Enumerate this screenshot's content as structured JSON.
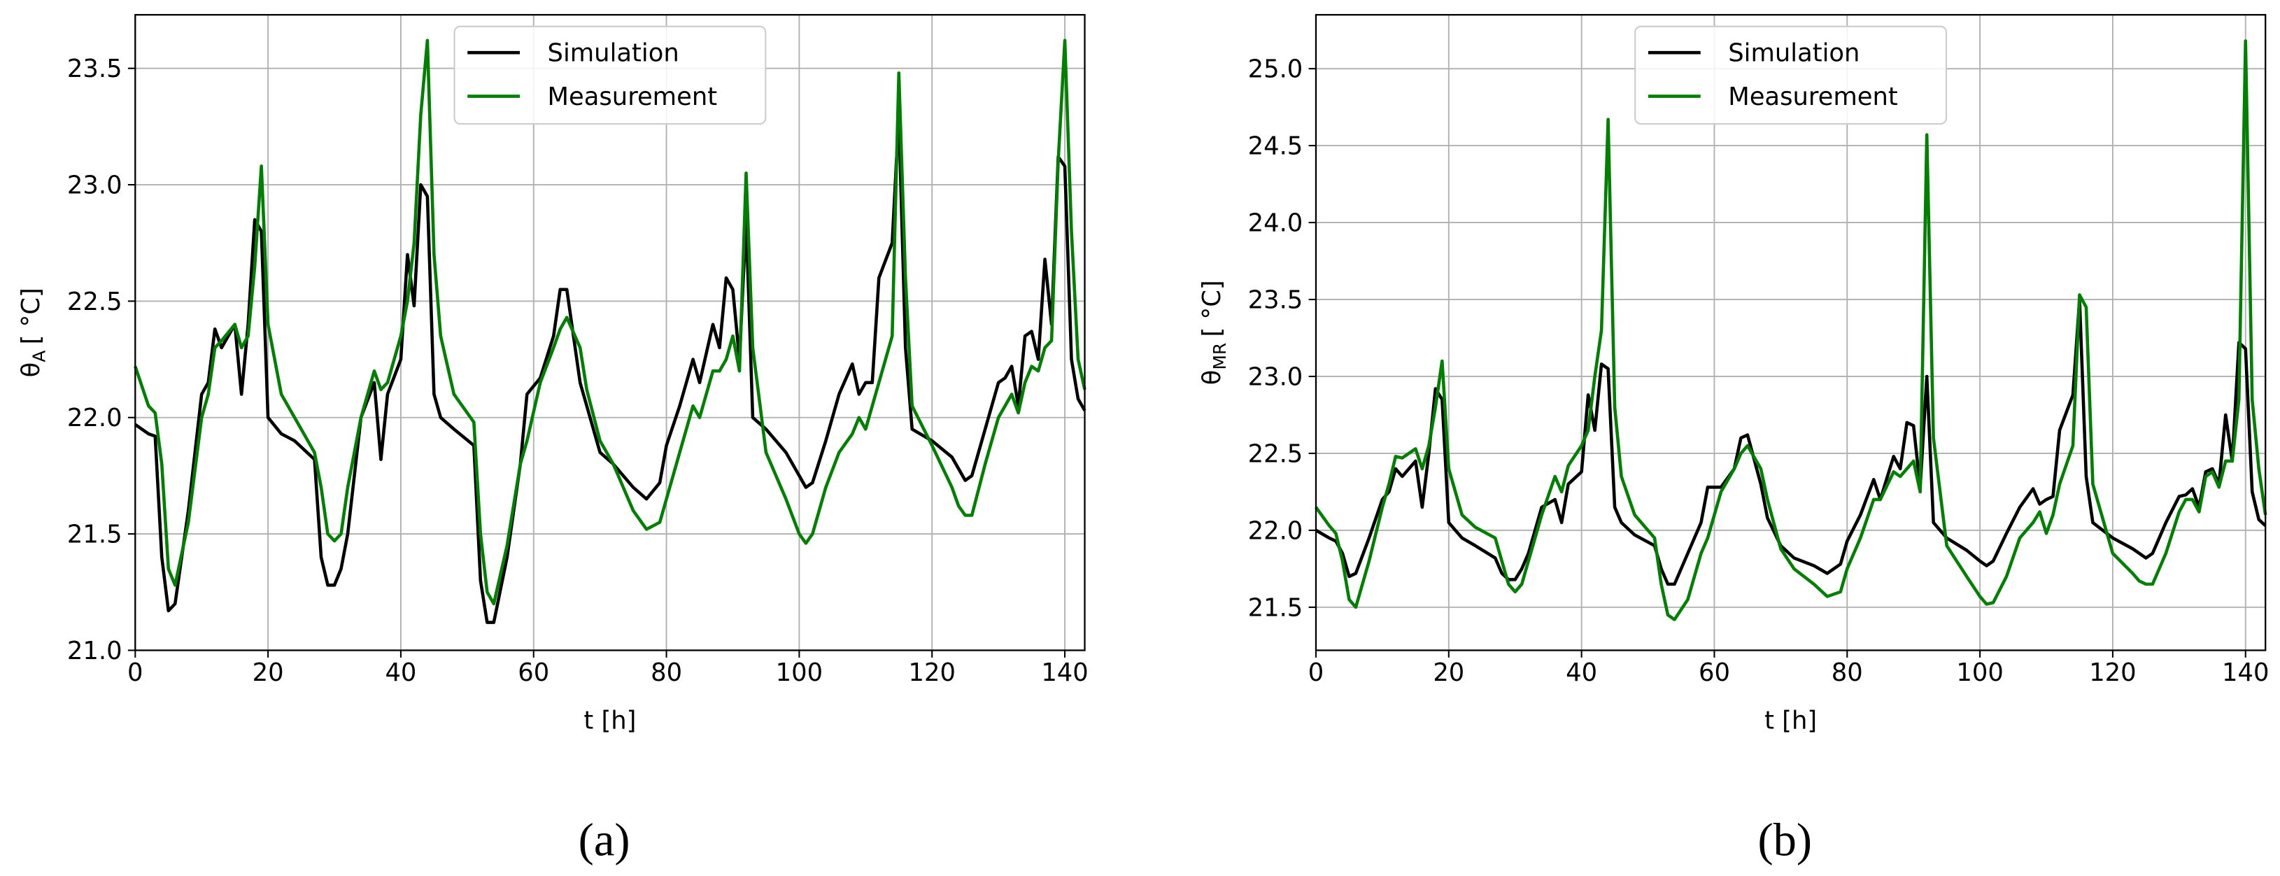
{
  "chart_data": [
    {
      "type": "line",
      "x_label": "t [h]",
      "y_label": {
        "symbol": "θ",
        "subscript": "A",
        "unit": "[ °C]"
      },
      "caption": "(a)",
      "x": [
        0,
        2,
        3,
        4,
        5,
        6,
        8,
        10,
        11,
        12,
        13,
        15,
        16,
        17,
        18,
        19,
        20,
        22,
        24,
        27,
        28,
        29,
        30,
        31,
        32,
        34,
        36,
        37,
        38,
        40,
        41,
        42,
        43,
        44,
        45,
        46,
        48,
        51,
        52,
        53,
        54,
        56,
        58,
        59,
        61,
        63,
        64,
        65,
        67,
        68,
        70,
        72,
        75,
        77,
        79,
        80,
        82,
        84,
        85,
        87,
        88,
        89,
        90,
        91,
        92,
        93,
        95,
        98,
        100,
        101,
        102,
        104,
        106,
        108,
        109,
        110,
        111,
        112,
        114,
        115,
        116,
        117,
        120,
        123,
        124,
        125,
        126,
        128,
        130,
        131,
        132,
        133,
        134,
        135,
        136,
        137,
        138,
        139,
        140,
        141,
        142,
        143
      ],
      "series": [
        {
          "name": "Simulation",
          "color": "#000000",
          "values": [
            21.97,
            21.93,
            21.92,
            21.4,
            21.17,
            21.2,
            21.6,
            22.1,
            22.15,
            22.38,
            22.3,
            22.4,
            22.1,
            22.4,
            22.85,
            22.8,
            22.0,
            21.93,
            21.9,
            21.82,
            21.4,
            21.28,
            21.28,
            21.35,
            21.5,
            22.0,
            22.15,
            21.82,
            22.1,
            22.25,
            22.7,
            22.48,
            23.0,
            22.95,
            22.1,
            22.0,
            21.95,
            21.88,
            21.3,
            21.12,
            21.12,
            21.4,
            21.8,
            22.1,
            22.17,
            22.35,
            22.55,
            22.55,
            22.15,
            22.05,
            21.85,
            21.8,
            21.7,
            21.65,
            21.72,
            21.88,
            22.05,
            22.25,
            22.15,
            22.4,
            22.3,
            22.6,
            22.55,
            22.25,
            22.85,
            22.0,
            21.95,
            21.85,
            21.75,
            21.7,
            21.72,
            21.9,
            22.1,
            22.23,
            22.1,
            22.15,
            22.15,
            22.6,
            22.75,
            23.3,
            22.3,
            21.95,
            21.9,
            21.83,
            21.78,
            21.73,
            21.75,
            21.95,
            22.15,
            22.17,
            22.22,
            22.05,
            22.35,
            22.37,
            22.25,
            22.68,
            22.4,
            23.12,
            23.08,
            22.25,
            22.08,
            22.03
          ]
        },
        {
          "name": "Measurement",
          "color": "#008000",
          "values": [
            22.22,
            22.05,
            22.02,
            21.8,
            21.35,
            21.28,
            21.55,
            22.0,
            22.1,
            22.3,
            22.33,
            22.4,
            22.3,
            22.35,
            22.65,
            23.08,
            22.4,
            22.1,
            22.0,
            21.85,
            21.7,
            21.5,
            21.47,
            21.5,
            21.7,
            22.0,
            22.2,
            22.12,
            22.15,
            22.35,
            22.5,
            22.75,
            23.3,
            23.62,
            22.7,
            22.35,
            22.1,
            21.98,
            21.5,
            21.25,
            21.2,
            21.45,
            21.8,
            21.9,
            22.15,
            22.3,
            22.38,
            22.43,
            22.3,
            22.12,
            21.9,
            21.8,
            21.6,
            21.52,
            21.55,
            21.65,
            21.85,
            22.05,
            22.0,
            22.2,
            22.2,
            22.25,
            22.35,
            22.2,
            23.05,
            22.3,
            21.85,
            21.65,
            21.5,
            21.46,
            21.5,
            21.7,
            21.85,
            21.93,
            22.0,
            21.95,
            22.05,
            22.15,
            22.35,
            23.48,
            22.6,
            22.05,
            21.88,
            21.7,
            21.62,
            21.58,
            21.58,
            21.8,
            22.0,
            22.05,
            22.1,
            22.02,
            22.15,
            22.22,
            22.2,
            22.3,
            22.33,
            23.1,
            23.62,
            22.8,
            22.25,
            22.12
          ]
        }
      ],
      "xlim": [
        0,
        143
      ],
      "ylim": [
        21.0,
        23.73
      ],
      "xticks": [
        0,
        20,
        40,
        60,
        80,
        100,
        120,
        140
      ],
      "yticks": [
        {
          "value": 21,
          "label": "21.0"
        },
        21.5,
        {
          "value": 22,
          "label": "22.0"
        },
        22.5,
        {
          "value": 23,
          "label": "23.0"
        },
        23.5
      ],
      "grid": true,
      "legend": "upper center"
    },
    {
      "type": "line",
      "x_label": "t [h]",
      "y_label": {
        "symbol": "θ",
        "subscript": "MR",
        "unit": "[ °C]"
      },
      "caption": "(b)",
      "x": [
        0,
        2,
        3,
        4,
        5,
        6,
        8,
        10,
        11,
        12,
        13,
        15,
        16,
        17,
        18,
        19,
        20,
        22,
        24,
        27,
        28,
        29,
        30,
        31,
        32,
        34,
        36,
        37,
        38,
        40,
        41,
        42,
        43,
        44,
        45,
        46,
        48,
        51,
        52,
        53,
        54,
        56,
        58,
        59,
        61,
        63,
        64,
        65,
        67,
        68,
        70,
        72,
        75,
        77,
        79,
        80,
        82,
        84,
        85,
        87,
        88,
        89,
        90,
        91,
        92,
        93,
        95,
        98,
        100,
        101,
        102,
        104,
        106,
        108,
        109,
        110,
        111,
        112,
        114,
        115,
        116,
        117,
        120,
        123,
        124,
        125,
        126,
        128,
        130,
        131,
        132,
        133,
        134,
        135,
        136,
        137,
        138,
        139,
        140,
        141,
        142,
        143
      ],
      "series": [
        {
          "name": "Simulation",
          "color": "#000000",
          "values": [
            22.0,
            21.95,
            21.93,
            21.85,
            21.7,
            21.72,
            21.95,
            22.2,
            22.25,
            22.4,
            22.35,
            22.45,
            22.15,
            22.5,
            22.92,
            22.85,
            22.05,
            21.95,
            21.9,
            21.82,
            21.72,
            21.68,
            21.68,
            21.75,
            21.85,
            22.15,
            22.2,
            22.05,
            22.3,
            22.38,
            22.88,
            22.65,
            23.08,
            23.05,
            22.15,
            22.05,
            21.97,
            21.9,
            21.75,
            21.65,
            21.65,
            21.85,
            22.05,
            22.28,
            22.28,
            22.4,
            22.6,
            22.62,
            22.3,
            22.08,
            21.9,
            21.82,
            21.77,
            21.72,
            21.78,
            21.93,
            22.1,
            22.33,
            22.2,
            22.48,
            22.4,
            22.7,
            22.68,
            22.28,
            23.0,
            22.05,
            21.95,
            21.87,
            21.8,
            21.77,
            21.8,
            21.98,
            22.15,
            22.27,
            22.17,
            22.2,
            22.22,
            22.65,
            22.88,
            23.5,
            22.35,
            22.05,
            21.95,
            21.88,
            21.85,
            21.82,
            21.85,
            22.05,
            22.22,
            22.23,
            22.27,
            22.15,
            22.38,
            22.4,
            22.3,
            22.75,
            22.45,
            23.22,
            23.18,
            22.25,
            22.07,
            22.03
          ]
        },
        {
          "name": "Measurement",
          "color": "#008000",
          "values": [
            22.15,
            22.03,
            21.98,
            21.8,
            21.55,
            21.5,
            21.8,
            22.15,
            22.3,
            22.48,
            22.47,
            22.53,
            22.4,
            22.55,
            22.8,
            23.1,
            22.4,
            22.1,
            22.02,
            21.95,
            21.8,
            21.65,
            21.6,
            21.65,
            21.8,
            22.1,
            22.35,
            22.25,
            22.42,
            22.55,
            22.65,
            23.0,
            23.3,
            24.67,
            22.8,
            22.35,
            22.1,
            21.95,
            21.65,
            21.45,
            21.42,
            21.55,
            21.85,
            21.95,
            22.25,
            22.4,
            22.5,
            22.55,
            22.4,
            22.2,
            21.88,
            21.75,
            21.65,
            21.57,
            21.6,
            21.75,
            21.95,
            22.2,
            22.2,
            22.38,
            22.35,
            22.4,
            22.45,
            22.25,
            24.57,
            22.6,
            21.9,
            21.7,
            21.57,
            21.52,
            21.53,
            21.7,
            21.95,
            22.05,
            22.12,
            21.98,
            22.1,
            22.3,
            22.55,
            23.53,
            23.45,
            22.3,
            21.85,
            21.72,
            21.67,
            21.65,
            21.65,
            21.85,
            22.12,
            22.2,
            22.2,
            22.12,
            22.35,
            22.38,
            22.28,
            22.45,
            22.45,
            22.85,
            25.18,
            22.85,
            22.4,
            22.1
          ]
        }
      ],
      "xlim": [
        0,
        143
      ],
      "ylim": [
        21.22,
        25.35
      ],
      "xticks": [
        0,
        20,
        40,
        60,
        80,
        100,
        120,
        140
      ],
      "yticks": [
        21.5,
        {
          "value": 22,
          "label": "22.0"
        },
        22.5,
        {
          "value": 23,
          "label": "23.0"
        },
        23.5,
        {
          "value": 24,
          "label": "24.0"
        },
        24.5,
        {
          "value": 25,
          "label": "25.0"
        }
      ],
      "grid": true,
      "legend": "upper center"
    }
  ]
}
